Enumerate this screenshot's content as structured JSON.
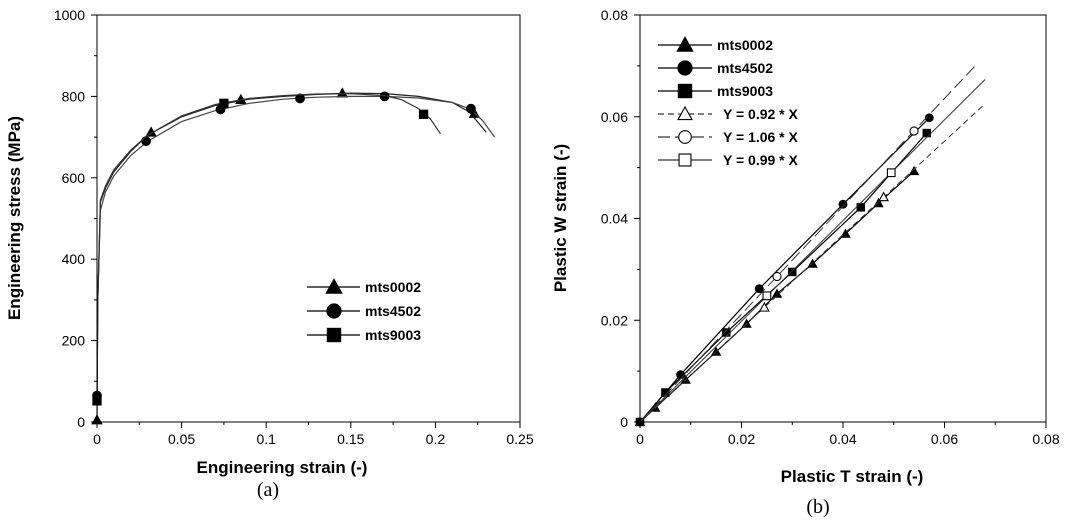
{
  "chart_data": [
    {
      "type": "line",
      "caption": "(a)",
      "xlabel": "Engineering strain (-)",
      "ylabel": "Engineering stress (MPa)",
      "xlim": [
        0,
        0.25
      ],
      "ylim": [
        0,
        1000
      ],
      "xticks": [
        "0",
        "0.05",
        "0.1",
        "0.15",
        "0.2",
        "0.25"
      ],
      "yticks": [
        "0",
        "200",
        "400",
        "600",
        "800",
        "1000"
      ],
      "grid": false,
      "legend_position": "right-middle",
      "series": [
        {
          "name": "mts0002",
          "marker": "filled-triangle",
          "x": [
            0,
            0.0005,
            0.002,
            0.005,
            0.01,
            0.02,
            0.03,
            0.05,
            0.07,
            0.09,
            0.11,
            0.13,
            0.15,
            0.17,
            0.19,
            0.21,
            0.22,
            0.23
          ],
          "y": [
            0,
            300,
            540,
            575,
            615,
            665,
            705,
            750,
            778,
            793,
            800,
            805,
            808,
            807,
            800,
            785,
            762,
            712
          ],
          "markers_x": [
            0,
            0.032,
            0.085,
            0.145,
            0.223
          ],
          "markers_y": [
            5,
            712,
            792,
            808,
            758
          ]
        },
        {
          "name": "mts4502",
          "marker": "filled-circle",
          "x": [
            0,
            0.0005,
            0.002,
            0.005,
            0.01,
            0.02,
            0.03,
            0.05,
            0.07,
            0.09,
            0.11,
            0.13,
            0.15,
            0.17,
            0.19,
            0.21,
            0.22,
            0.228,
            0.235
          ],
          "y": [
            60,
            300,
            520,
            565,
            605,
            655,
            690,
            738,
            765,
            783,
            793,
            798,
            800,
            800,
            796,
            785,
            770,
            740,
            700
          ],
          "markers_x": [
            0,
            0.029,
            0.073,
            0.12,
            0.17,
            0.221
          ],
          "markers_y": [
            65,
            690,
            768,
            795,
            800,
            770
          ]
        },
        {
          "name": "mts9003",
          "marker": "filled-square",
          "x": [
            0,
            0.0005,
            0.002,
            0.005,
            0.01,
            0.02,
            0.03,
            0.05,
            0.07,
            0.09,
            0.11,
            0.13,
            0.15,
            0.17,
            0.18,
            0.19,
            0.197,
            0.203
          ],
          "y": [
            50,
            300,
            545,
            580,
            620,
            668,
            705,
            752,
            780,
            795,
            802,
            806,
            807,
            802,
            792,
            770,
            745,
            708
          ],
          "markers_x": [
            0,
            0.075,
            0.193
          ],
          "markers_y": [
            52,
            783,
            756
          ]
        }
      ]
    },
    {
      "type": "scatter",
      "caption": "(b)",
      "xlabel": "Plastic T strain (-)",
      "ylabel": "Plastic W strain (-)",
      "xlim": [
        0,
        0.08
      ],
      "ylim": [
        0,
        0.08
      ],
      "xticks": [
        "0",
        "0.02",
        "0.04",
        "0.06",
        "0.08"
      ],
      "yticks": [
        "0",
        "0.02",
        "0.04",
        "0.06",
        "0.08"
      ],
      "grid": false,
      "legend_position": "top-left",
      "series": [
        {
          "name": "mts0002",
          "marker": "filled-triangle",
          "x": [
            0,
            0.003,
            0.009,
            0.015,
            0.021,
            0.027,
            0.034,
            0.0405,
            0.047,
            0.054
          ],
          "y": [
            0,
            0.0028,
            0.0083,
            0.0138,
            0.0193,
            0.0252,
            0.0311,
            0.037,
            0.043,
            0.0493
          ]
        },
        {
          "name": "mts4502",
          "marker": "filled-circle",
          "x": [
            0,
            0.008,
            0.0235,
            0.04,
            0.057
          ],
          "y": [
            0,
            0.0093,
            0.0262,
            0.0428,
            0.0598
          ]
        },
        {
          "name": "mts9003",
          "marker": "filled-square",
          "x": [
            0,
            0.005,
            0.017,
            0.03,
            0.0435,
            0.0565
          ],
          "y": [
            0,
            0.0058,
            0.0176,
            0.0295,
            0.0422,
            0.0568
          ]
        },
        {
          "name": "Y = 0.92 * X",
          "marker": "open-triangle",
          "line": "dashed",
          "slope": 0.92,
          "x_end": 0.068,
          "markers_x": [
            0.0245,
            0.048
          ],
          "markers_y": [
            0.0225,
            0.0442
          ]
        },
        {
          "name": "Y = 1.06 * X",
          "marker": "open-circle",
          "line": "long-dash",
          "slope": 1.06,
          "x_end": 0.066,
          "markers_x": [
            0.027,
            0.054
          ],
          "markers_y": [
            0.0286,
            0.0572
          ]
        },
        {
          "name": "Y = 0.99 * X",
          "marker": "open-square",
          "line": "solid-thin",
          "slope": 0.99,
          "x_end": 0.068,
          "markers_x": [
            0.025,
            0.0495
          ],
          "markers_y": [
            0.0248,
            0.049
          ]
        }
      ]
    }
  ]
}
